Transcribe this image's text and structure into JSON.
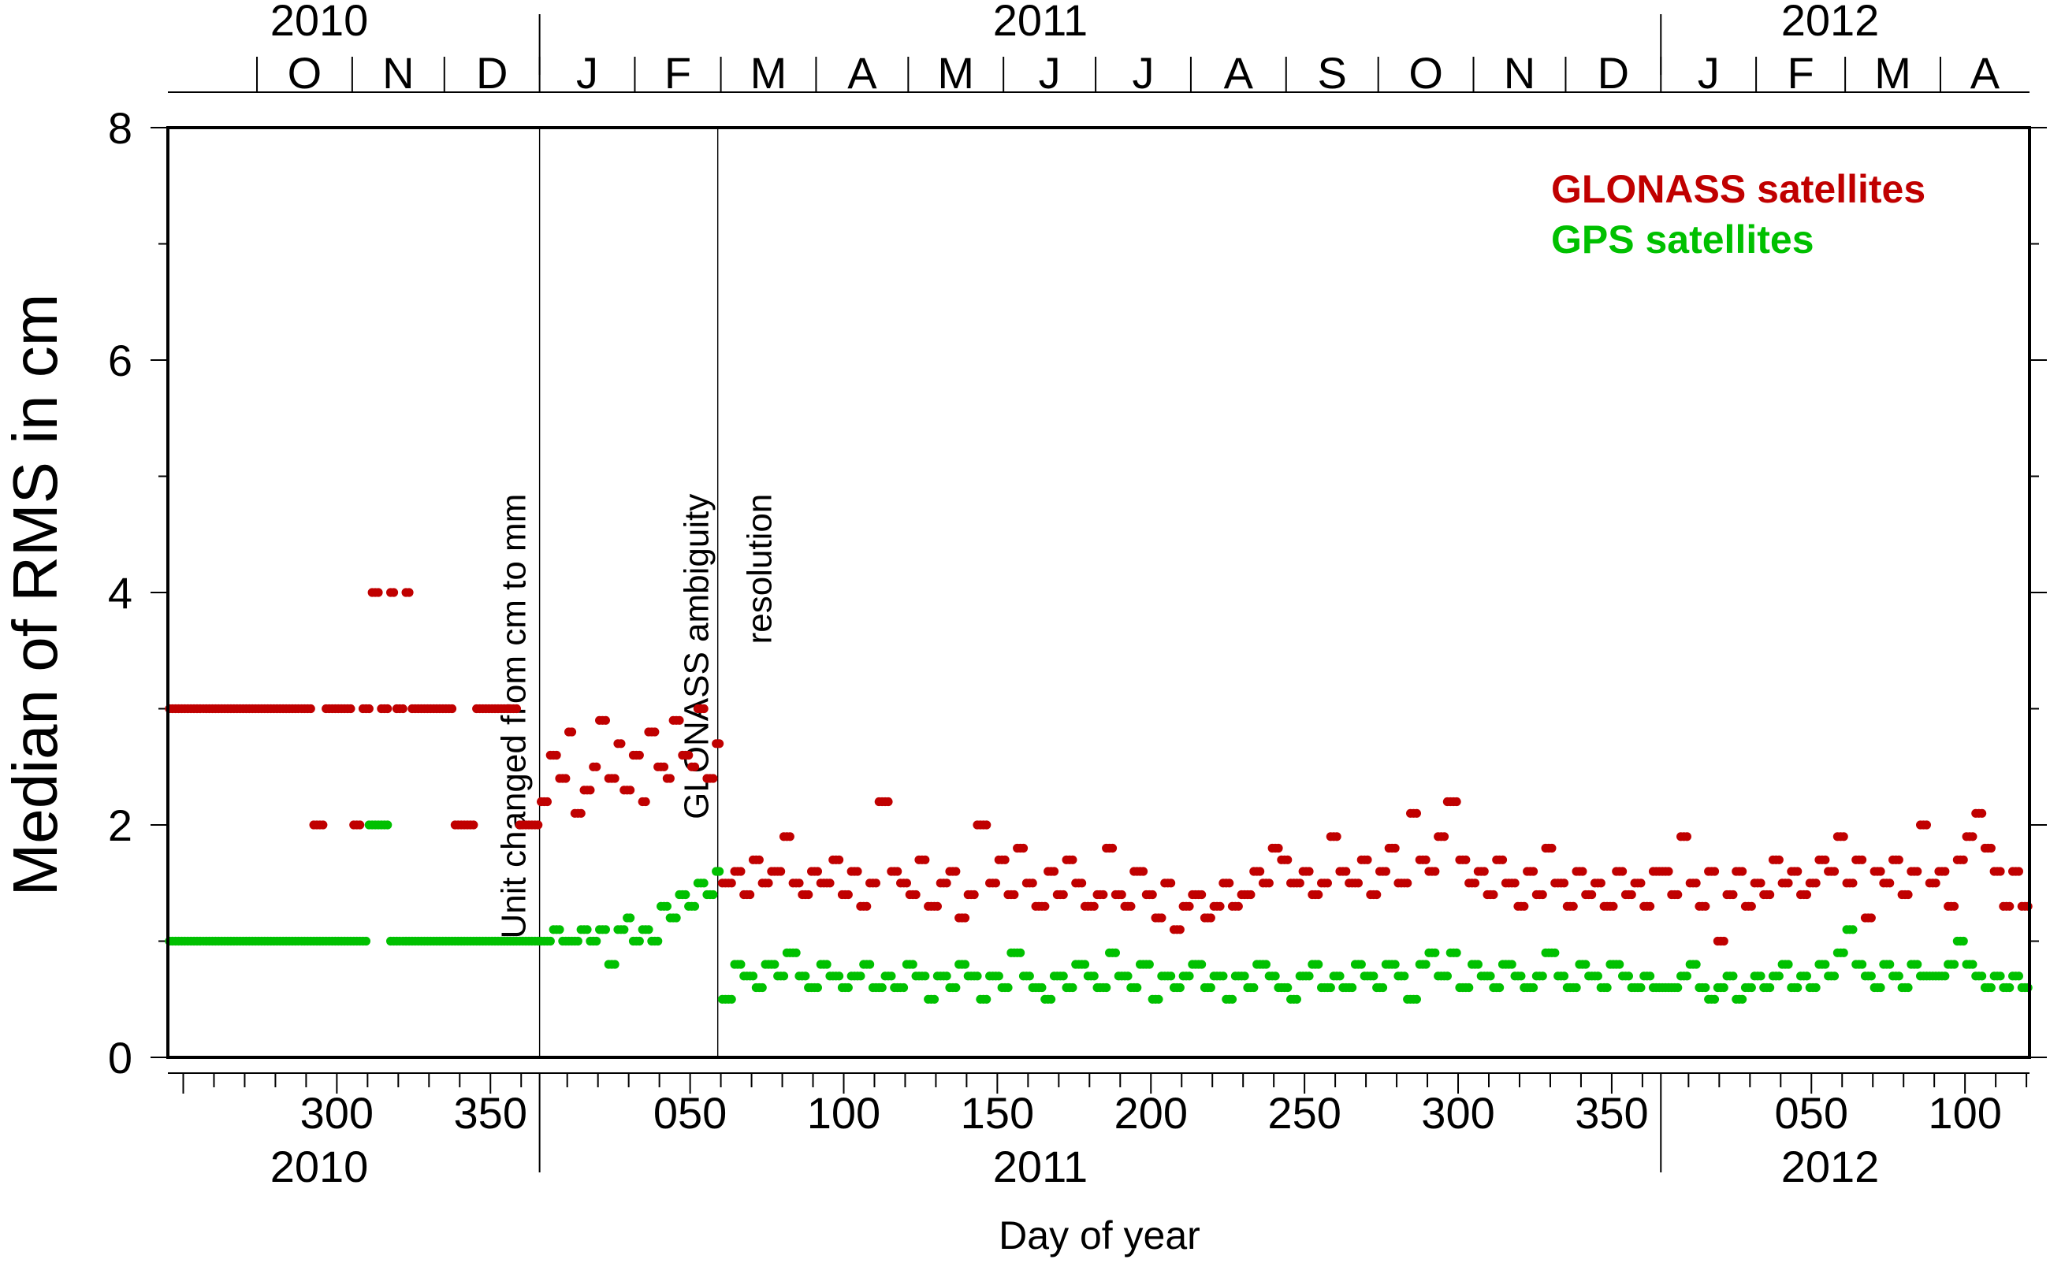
{
  "chart_data": {
    "type": "scatter",
    "title": "",
    "xlabel": "Day of year",
    "ylabel": "Median of RMS in cm",
    "ylim": [
      0,
      8
    ],
    "yticks": [
      0,
      2,
      4,
      6,
      8
    ],
    "xlim": [
      "2010-09-02",
      "2012-04-29"
    ],
    "xticks": [
      {
        "label": "300",
        "date": "2010-10-27"
      },
      {
        "label": "350",
        "date": "2010-12-16"
      },
      {
        "label": "050",
        "date": "2011-02-19"
      },
      {
        "label": "100",
        "date": "2011-04-10"
      },
      {
        "label": "150",
        "date": "2011-05-30"
      },
      {
        "label": "200",
        "date": "2011-07-19"
      },
      {
        "label": "250",
        "date": "2011-09-07"
      },
      {
        "label": "300",
        "date": "2011-10-27"
      },
      {
        "label": "350",
        "date": "2011-12-16"
      },
      {
        "label": "050",
        "date": "2012-02-19"
      },
      {
        "label": "100",
        "date": "2012-04-09"
      }
    ],
    "years_top": [
      "2010",
      "2011",
      "2012"
    ],
    "years_bottom": [
      "2010",
      "2011",
      "2012"
    ],
    "months": [
      "O",
      "N",
      "D",
      "J",
      "F",
      "M",
      "A",
      "M",
      "J",
      "J",
      "A",
      "S",
      "O",
      "N",
      "D",
      "J",
      "F",
      "M",
      "A"
    ],
    "legend_position": "top-right",
    "grid": false,
    "annotations": [
      {
        "text": "Unit changed from cm to mm",
        "date": "2011-01-01"
      },
      {
        "text": "GLONASS ambiguity",
        "date": "2011-02-28"
      },
      {
        "text": "resolution",
        "date": "2011-02-28"
      }
    ],
    "series": [
      {
        "name": "GLONASS satellites",
        "color": "#c00000",
        "segments": [
          {
            "from": "2010-09-02",
            "to": "2010-10-18",
            "values": [
              3.0
            ]
          },
          {
            "from": "2010-10-19",
            "to": "2010-10-22",
            "values": [
              2.0
            ]
          },
          {
            "from": "2010-10-23",
            "to": "2010-11-06",
            "values": [
              3.0,
              3.0,
              3.0,
              2.0,
              3.0
            ]
          },
          {
            "from": "2010-11-07",
            "to": "2010-11-19",
            "values": [
              4.0,
              3.0,
              4.0,
              3.0,
              4.0
            ]
          },
          {
            "from": "2010-11-20",
            "to": "2010-12-31",
            "values": [
              3.0,
              3.0,
              2.0,
              3.0,
              3.0,
              2.0
            ]
          },
          {
            "from": "2011-01-01",
            "to": "2011-02-28",
            "values": [
              2.2,
              2.6,
              2.4,
              2.8,
              2.1,
              2.3,
              2.5,
              2.9,
              2.4,
              2.7,
              2.3,
              2.6,
              2.2,
              2.8,
              2.5,
              2.4,
              2.9,
              2.6,
              2.5,
              3.0,
              2.4,
              2.7
            ]
          },
          {
            "from": "2011-03-01",
            "to": "2011-12-31",
            "values": [
              1.5,
              1.6,
              1.4,
              1.7,
              1.5,
              1.6,
              1.9,
              1.5,
              1.4,
              1.6,
              1.5,
              1.7,
              1.4,
              1.6,
              1.3,
              1.5,
              2.2,
              1.6,
              1.5,
              1.4,
              1.7,
              1.3,
              1.5,
              1.6,
              1.2,
              1.4,
              2.0,
              1.5,
              1.7,
              1.4,
              1.8,
              1.5,
              1.3,
              1.6,
              1.4,
              1.7,
              1.5,
              1.3,
              1.4,
              1.8,
              1.4,
              1.3,
              1.6,
              1.4,
              1.2,
              1.5,
              1.1,
              1.3,
              1.4,
              1.2,
              1.3,
              1.5,
              1.3,
              1.4,
              1.6,
              1.5,
              1.8,
              1.7,
              1.5,
              1.6,
              1.4,
              1.5,
              1.9,
              1.6,
              1.5,
              1.7,
              1.4,
              1.6,
              1.8,
              1.5,
              2.1,
              1.7,
              1.6,
              1.9,
              2.2,
              1.7,
              1.5,
              1.6,
              1.4,
              1.7,
              1.5,
              1.3,
              1.6,
              1.4,
              1.8,
              1.5,
              1.3,
              1.6,
              1.4,
              1.5,
              1.3,
              1.6,
              1.4,
              1.5,
              1.3,
              1.6
            ]
          },
          {
            "from": "2012-01-01",
            "to": "2012-04-29",
            "values": [
              1.6,
              1.4,
              1.9,
              1.5,
              1.3,
              1.6,
              1.0,
              1.4,
              1.6,
              1.3,
              1.5,
              1.4,
              1.7,
              1.5,
              1.6,
              1.4,
              1.5,
              1.7,
              1.6,
              1.9,
              1.5,
              1.7,
              1.2,
              1.6,
              1.5,
              1.7,
              1.4,
              1.6,
              2.0,
              1.5,
              1.6,
              1.3,
              1.7,
              1.9,
              2.1,
              1.8,
              1.6,
              1.3,
              1.6,
              1.3
            ]
          }
        ]
      },
      {
        "name": "GPS satellites",
        "color": "#00c000",
        "segments": [
          {
            "from": "2010-09-02",
            "to": "2010-11-05",
            "values": [
              1.0
            ]
          },
          {
            "from": "2010-11-06",
            "to": "2010-11-12",
            "values": [
              2.0
            ]
          },
          {
            "from": "2010-11-13",
            "to": "2011-01-01",
            "values": [
              1.0
            ]
          },
          {
            "from": "2011-01-02",
            "to": "2011-02-28",
            "values": [
              1.0,
              1.1,
              1.0,
              1.0,
              1.1,
              1.0,
              1.1,
              0.8,
              1.1,
              1.2,
              1.0,
              1.1,
              1.0,
              1.3,
              1.2,
              1.4,
              1.3,
              1.5,
              1.4,
              1.6
            ]
          },
          {
            "from": "2011-03-01",
            "to": "2011-12-31",
            "values": [
              0.5,
              0.8,
              0.7,
              0.6,
              0.8,
              0.7,
              0.9,
              0.7,
              0.6,
              0.8,
              0.7,
              0.6,
              0.7,
              0.8,
              0.6,
              0.7,
              0.6,
              0.8,
              0.7,
              0.5,
              0.7,
              0.6,
              0.8,
              0.7,
              0.5,
              0.7,
              0.6,
              0.9,
              0.7,
              0.6,
              0.5,
              0.7,
              0.6,
              0.8,
              0.7,
              0.6,
              0.9,
              0.7,
              0.6,
              0.8,
              0.5,
              0.7,
              0.6,
              0.7,
              0.8,
              0.6,
              0.7,
              0.5,
              0.7,
              0.6,
              0.8,
              0.7,
              0.6,
              0.5,
              0.7,
              0.8,
              0.6,
              0.7,
              0.6,
              0.8,
              0.7,
              0.6,
              0.8,
              0.7,
              0.5,
              0.8,
              0.9,
              0.7,
              0.9,
              0.6,
              0.8,
              0.7,
              0.6,
              0.8,
              0.7,
              0.6,
              0.7,
              0.9,
              0.7,
              0.6,
              0.8,
              0.7,
              0.6,
              0.8,
              0.7,
              0.6,
              0.7,
              0.6
            ]
          },
          {
            "from": "2012-01-01",
            "to": "2012-04-29",
            "values": [
              0.6,
              0.6,
              0.7,
              0.8,
              0.6,
              0.5,
              0.6,
              0.7,
              0.5,
              0.6,
              0.7,
              0.6,
              0.7,
              0.8,
              0.6,
              0.7,
              0.6,
              0.8,
              0.7,
              0.9,
              1.1,
              0.8,
              0.7,
              0.6,
              0.8,
              0.7,
              0.6,
              0.8,
              0.7,
              0.7,
              0.7,
              0.8,
              1.0,
              0.8,
              0.7,
              0.6,
              0.7,
              0.6,
              0.7,
              0.6
            ]
          }
        ]
      }
    ]
  }
}
